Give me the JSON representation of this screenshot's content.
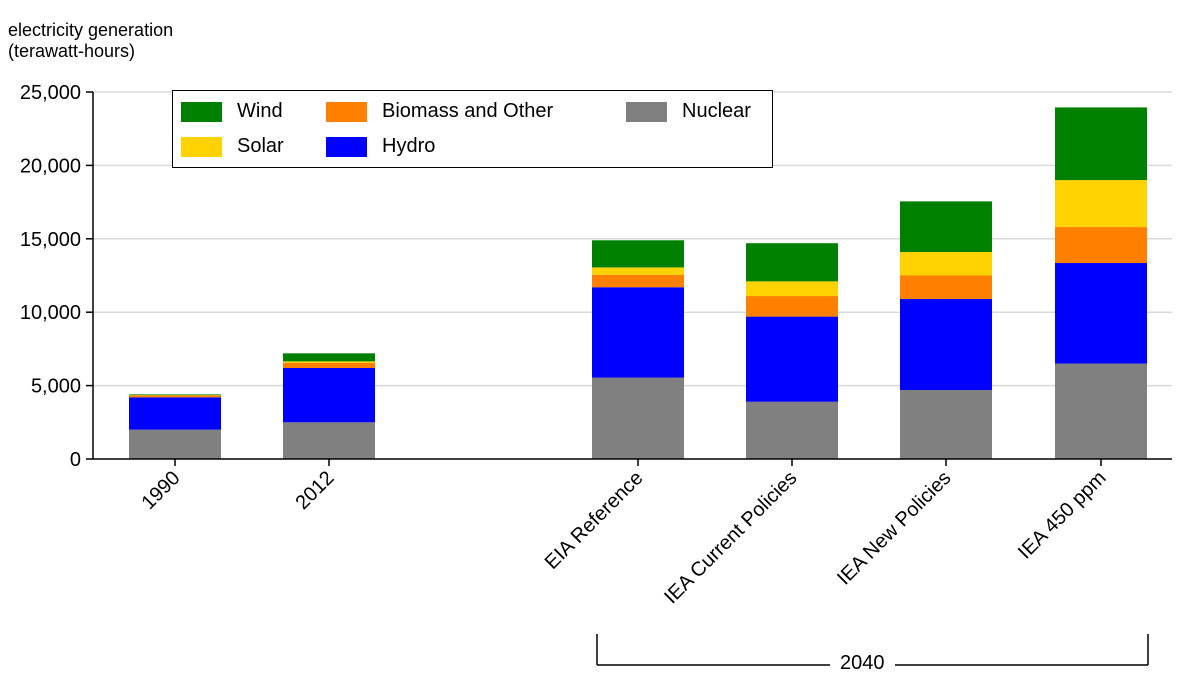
{
  "y_axis_title_line1": "electricity generation",
  "y_axis_title_line2": "(terawatt-hours)",
  "group_label": "2040",
  "colors": {
    "Wind": "#008000",
    "Solar": "#ffd200",
    "Biomass and Other": "#ff8000",
    "Hydro": "#0000ff",
    "Nuclear": "#808080"
  },
  "legend": [
    {
      "name": "Wind"
    },
    {
      "name": "Solar"
    },
    {
      "name": "Biomass and Other"
    },
    {
      "name": "Hydro"
    },
    {
      "name": "Nuclear"
    }
  ],
  "chart_data": {
    "type": "bar",
    "stacked": true,
    "categories": [
      "1990",
      "2012",
      "EIA Reference",
      "IEA Current Policies",
      "IEA New Policies",
      "IEA 450 ppm"
    ],
    "series": [
      {
        "name": "Nuclear",
        "values": [
          2000,
          2500,
          5550,
          3900,
          4700,
          6500
        ]
      },
      {
        "name": "Hydro",
        "values": [
          2200,
          3700,
          6150,
          5800,
          6200,
          6850
        ]
      },
      {
        "name": "Biomass and Other",
        "values": [
          130,
          350,
          850,
          1400,
          1600,
          2450
        ]
      },
      {
        "name": "Solar",
        "values": [
          20,
          100,
          500,
          1000,
          1600,
          3200
        ]
      },
      {
        "name": "Wind",
        "values": [
          50,
          550,
          1850,
          2600,
          3450,
          4950
        ]
      }
    ],
    "yticks": [
      0,
      5000,
      10000,
      15000,
      20000,
      25000
    ],
    "ytick_labels": [
      "0",
      "5,000",
      "10,000",
      "15,000",
      "20,000",
      "25,000"
    ],
    "ylim": [
      0,
      25000
    ],
    "grid": true,
    "legend_position": "top-left"
  }
}
